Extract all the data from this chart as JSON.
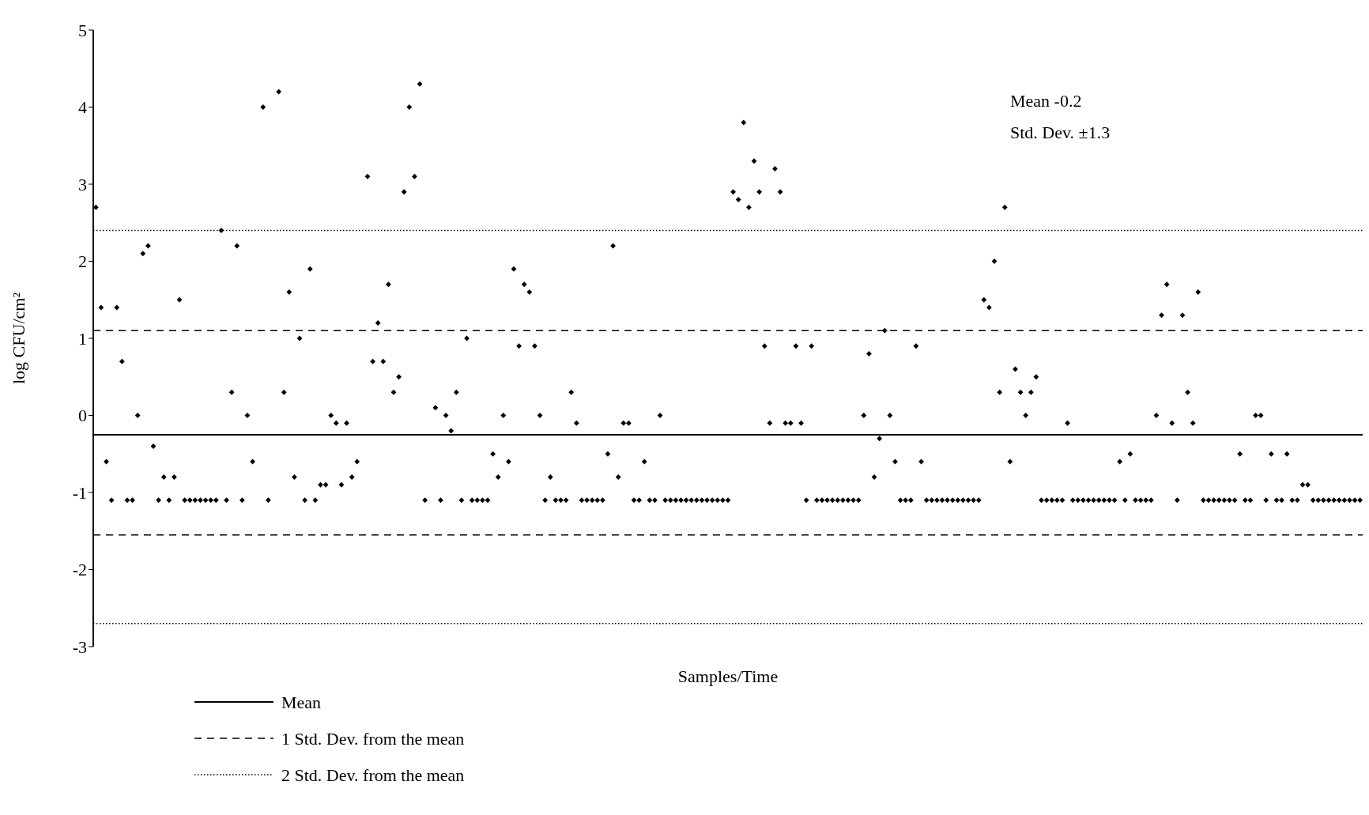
{
  "chart_data": {
    "type": "scatter",
    "xlabel": "Samples/Time",
    "ylabel": "log CFU/cm²",
    "annotations": [
      "Mean -0.2",
      "Std. Dev. ±1.3"
    ],
    "categories": [
      null,
      null,
      null,
      null,
      null,
      null,
      null,
      null,
      null,
      null,
      null,
      null,
      null,
      null,
      null,
      null,
      null,
      null,
      null,
      null,
      null,
      null,
      null,
      null,
      null,
      null,
      null,
      null,
      null,
      null,
      null,
      null,
      null,
      null,
      null,
      null,
      null,
      null,
      null,
      null,
      null,
      null,
      null,
      null,
      null,
      null,
      null,
      null,
      null,
      null,
      null,
      null,
      null,
      null,
      null,
      null,
      null,
      null,
      null,
      null,
      null,
      null,
      null,
      null,
      null,
      null,
      null,
      null,
      null,
      null,
      null,
      null,
      null,
      null,
      null,
      null,
      null,
      null,
      null,
      null,
      null,
      null,
      null,
      null,
      null,
      null,
      null,
      null,
      null,
      null,
      null,
      null,
      null,
      null,
      null,
      null,
      null,
      null,
      null,
      null,
      null,
      null,
      null,
      null,
      null,
      null,
      null,
      null,
      null,
      null,
      null,
      null,
      null,
      null,
      null,
      null,
      null,
      null,
      null,
      null,
      null,
      null,
      null,
      null,
      null,
      null,
      null,
      null,
      null,
      null,
      null,
      null,
      null,
      null,
      null,
      null,
      null,
      null,
      null,
      null,
      null,
      null,
      null,
      null,
      null,
      null,
      null,
      null,
      null,
      null,
      null,
      null,
      null,
      null,
      null,
      null,
      null,
      null,
      null,
      null,
      null,
      null,
      null,
      null,
      null,
      null,
      null,
      null,
      null,
      null,
      null,
      null,
      null,
      null,
      null,
      null,
      null,
      null,
      null,
      null,
      null,
      null,
      null,
      null,
      null,
      null,
      null,
      null,
      null,
      null,
      null,
      null,
      null,
      null,
      null,
      null,
      null,
      null,
      null,
      null,
      null,
      null,
      null,
      null,
      null,
      null,
      null,
      null,
      null,
      null,
      null,
      null,
      null,
      null,
      null,
      null,
      null,
      null,
      null,
      null,
      null,
      null,
      null,
      null,
      null,
      null,
      null,
      null,
      null,
      null,
      null,
      null,
      null,
      null,
      null,
      null,
      null,
      null,
      null,
      null,
      null,
      null,
      null
    ],
    "series": [
      {
        "color": "#000000",
        "values": [
          2.7,
          1.4,
          -0.6,
          -1.1,
          1.4,
          0.7,
          -1.1,
          -1.1,
          0.0,
          2.1,
          2.2,
          -0.4,
          -1.1,
          -0.8,
          -1.1,
          -0.8,
          1.5,
          -1.1,
          -1.1,
          -1.1,
          -1.1,
          -1.1,
          -1.1,
          -1.1,
          2.4,
          -1.1,
          0.3,
          2.2,
          -1.1,
          0.0,
          -0.6,
          null,
          4.0,
          -1.1,
          null,
          4.2,
          0.3,
          1.6,
          -0.8,
          1.0,
          -1.1,
          1.9,
          -1.1,
          -0.9,
          -0.9,
          0.0,
          -0.1,
          -0.9,
          -0.1,
          -0.8,
          -0.6,
          null,
          3.1,
          0.7,
          1.2,
          0.7,
          1.7,
          0.3,
          0.5,
          2.9,
          4.0,
          3.1,
          4.3,
          -1.1,
          null,
          0.1,
          -1.1,
          0.0,
          -0.2,
          0.3,
          -1.1,
          1.0,
          -1.1,
          -1.1,
          -1.1,
          -1.1,
          -0.5,
          -0.8,
          0.0,
          -0.6,
          1.9,
          0.9,
          1.7,
          1.6,
          0.9,
          0.0,
          -1.1,
          -0.8,
          -1.1,
          -1.1,
          -1.1,
          0.3,
          -0.1,
          -1.1,
          -1.1,
          -1.1,
          -1.1,
          -1.1,
          -0.5,
          2.2,
          -0.8,
          -0.1,
          -0.1,
          -1.1,
          -1.1,
          -0.6,
          -1.1,
          -1.1,
          0.0,
          -1.1,
          -1.1,
          -1.1,
          -1.1,
          -1.1,
          -1.1,
          -1.1,
          -1.1,
          -1.1,
          -1.1,
          -1.1,
          -1.1,
          -1.1,
          2.9,
          2.8,
          3.8,
          2.7,
          3.3,
          2.9,
          0.9,
          -0.1,
          3.2,
          2.9,
          -0.1,
          -0.1,
          0.9,
          -0.1,
          -1.1,
          0.9,
          -1.1,
          -1.1,
          -1.1,
          -1.1,
          -1.1,
          -1.1,
          -1.1,
          -1.1,
          -1.1,
          0.0,
          0.8,
          -0.8,
          -0.3,
          1.1,
          0.0,
          -0.6,
          -1.1,
          -1.1,
          -1.1,
          0.9,
          -0.6,
          -1.1,
          -1.1,
          -1.1,
          -1.1,
          -1.1,
          -1.1,
          -1.1,
          -1.1,
          -1.1,
          -1.1,
          -1.1,
          1.5,
          1.4,
          2.0,
          0.3,
          2.7,
          -0.6,
          0.6,
          0.3,
          0.0,
          0.3,
          0.5,
          -1.1,
          -1.1,
          -1.1,
          -1.1,
          -1.1,
          -0.1,
          -1.1,
          -1.1,
          -1.1,
          -1.1,
          -1.1,
          -1.1,
          -1.1,
          -1.1,
          -1.1,
          -0.6,
          -1.1,
          -0.5,
          -1.1,
          -1.1,
          -1.1,
          -1.1,
          0.0,
          1.3,
          1.7,
          -0.1,
          -1.1,
          1.3,
          0.3,
          -0.1,
          1.6,
          -1.1,
          -1.1,
          -1.1,
          -1.1,
          -1.1,
          -1.1,
          -1.1,
          -0.5,
          -1.1,
          -1.1,
          0.0,
          0.0,
          -1.1,
          -0.5,
          -1.1,
          -1.1,
          -0.5,
          -1.1,
          -1.1,
          -0.9,
          -0.9,
          -1.1,
          -1.1,
          -1.1,
          -1.1,
          -1.1,
          -1.1,
          -1.1,
          -1.1,
          -1.1,
          -1.1
        ]
      }
    ],
    "marker": "diamond",
    "ylim": [
      -3,
      5
    ],
    "yticks": [
      -3,
      -2,
      -1,
      0,
      1,
      2,
      3,
      4,
      5
    ],
    "ref_lines": [
      {
        "axis": "y",
        "value": -0.25,
        "label": "Mean",
        "line_style": "solid",
        "color": "#000000"
      },
      {
        "axis": "y",
        "value": 1.1,
        "label": "1 Std. Dev. from the mean",
        "line_style": "dashed",
        "color": "#000000"
      },
      {
        "axis": "y",
        "value": -1.55,
        "label": null,
        "line_style": "dashed",
        "color": "#000000"
      },
      {
        "axis": "y",
        "value": 2.4,
        "label": "2 Std. Dev. from the mean",
        "line_style": "dotted",
        "color": "#000000"
      },
      {
        "axis": "y",
        "value": -2.7,
        "label": null,
        "line_style": "dotted",
        "color": "#000000"
      }
    ],
    "legend": "bottom left",
    "grid": false
  }
}
